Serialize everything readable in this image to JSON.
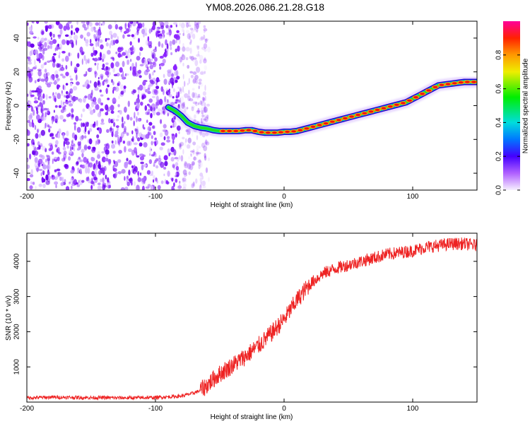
{
  "title": "YM08.2026.086.21.28.G18",
  "chart_data": [
    {
      "type": "heatmap",
      "xlabel": "Height of straight line (km)",
      "ylabel": "Frequency (Hz)",
      "xlim": [
        -200,
        150
      ],
      "ylim": [
        -50,
        50
      ],
      "xticks": [
        "-200",
        "-100",
        "0",
        "100"
      ],
      "yticks": [
        "-40",
        "-20",
        "0",
        "20",
        "40"
      ],
      "noise_region_x": [
        -200,
        -65
      ],
      "trace": {
        "x": [
          -90,
          -85,
          -80,
          -75,
          -70,
          -65,
          -60,
          -55,
          -50,
          -45,
          -40,
          -35,
          -30,
          -25,
          -20,
          -15,
          -10,
          -5,
          0,
          5,
          10,
          15,
          20,
          25,
          30,
          35,
          40,
          45,
          50,
          55,
          60,
          65,
          70,
          75,
          80,
          85,
          90,
          95,
          100,
          105,
          110,
          115,
          120,
          125,
          130,
          135,
          140,
          145,
          150
        ],
        "y": [
          -1,
          -3,
          -6,
          -10,
          -12,
          -13,
          -13.5,
          -14.5,
          -15,
          -15,
          -15,
          -15,
          -14.5,
          -14.5,
          -15.5,
          -16,
          -16,
          -16,
          -15.5,
          -15.5,
          -15,
          -14,
          -13,
          -12,
          -11,
          -10,
          -9,
          -8,
          -7,
          -6,
          -5,
          -4,
          -3,
          -2,
          -1,
          0,
          1,
          2,
          4,
          6,
          8,
          10,
          12,
          12.5,
          13,
          13.5,
          14,
          14,
          14
        ]
      },
      "colorbar": {
        "label": "Normalized spectral amplitude",
        "range": [
          0,
          1
        ],
        "ticks": [
          "0.0",
          "0.2",
          "0.4",
          "0.6",
          "0.8"
        ]
      }
    },
    {
      "type": "line",
      "xlabel": "Height of straight line (km)",
      "ylabel": "SNR (10 * v/v)",
      "xlim": [
        -200,
        150
      ],
      "ylim": [
        0,
        4800
      ],
      "xticks": [
        "-200",
        "-100",
        "0",
        "100"
      ],
      "yticks": [
        "1000",
        "2000",
        "3000",
        "4000"
      ],
      "series": [
        {
          "name": "SNR",
          "color": "#ee2222",
          "x": [
            -200,
            -180,
            -160,
            -140,
            -120,
            -100,
            -90,
            -80,
            -70,
            -65,
            -60,
            -55,
            -50,
            -40,
            -30,
            -20,
            -10,
            0,
            10,
            20,
            30,
            40,
            50,
            60,
            70,
            80,
            90,
            100,
            110,
            120,
            130,
            140,
            150
          ],
          "values": [
            120,
            140,
            130,
            125,
            120,
            130,
            150,
            170,
            260,
            330,
            480,
            650,
            800,
            1050,
            1300,
            1600,
            1950,
            2350,
            2900,
            3350,
            3650,
            3800,
            3900,
            4000,
            4100,
            4200,
            4250,
            4300,
            4400,
            4450,
            4500,
            4500,
            4450
          ]
        }
      ]
    }
  ]
}
